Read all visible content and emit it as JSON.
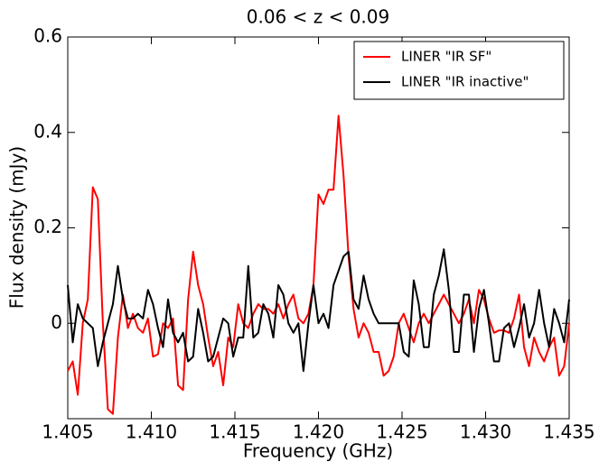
{
  "chart_data": {
    "type": "line",
    "title": "0.06 < z < 0.09",
    "x_label": "Frequency (GHz)",
    "y_label": "Flux density (mJy)",
    "x": [
      1.405,
      1.4053,
      1.4056,
      1.4059,
      1.4062,
      1.4065,
      1.4068,
      1.4071,
      1.4074,
      1.4077,
      1.408,
      1.4083,
      1.4086,
      1.4089,
      1.4092,
      1.4095,
      1.4098,
      1.4101,
      1.4104,
      1.4107,
      1.411,
      1.4113,
      1.4116,
      1.4119,
      1.4122,
      1.4125,
      1.4128,
      1.4131,
      1.4134,
      1.4137,
      1.414,
      1.4143,
      1.4146,
      1.4149,
      1.4152,
      1.4155,
      1.4158,
      1.4161,
      1.4164,
      1.4167,
      1.417,
      1.4173,
      1.4176,
      1.4179,
      1.4182,
      1.4185,
      1.4188,
      1.4191,
      1.4194,
      1.4197,
      1.42,
      1.4203,
      1.4206,
      1.4209,
      1.4212,
      1.4215,
      1.4218,
      1.4221,
      1.4224,
      1.4227,
      1.423,
      1.4233,
      1.4236,
      1.4239,
      1.4242,
      1.4245,
      1.4248,
      1.4251,
      1.4254,
      1.4257,
      1.426,
      1.4263,
      1.4266,
      1.4269,
      1.4272,
      1.4275,
      1.4278,
      1.4281,
      1.4284,
      1.4287,
      1.429,
      1.4293,
      1.4296,
      1.4299,
      1.4302,
      1.4305,
      1.4308,
      1.4311,
      1.4314,
      1.4317,
      1.432,
      1.4323,
      1.4326,
      1.4329,
      1.4332,
      1.4335,
      1.4338,
      1.4341,
      1.4344,
      1.4347,
      1.435
    ],
    "series": [
      {
        "name": "LINER \"IR SF\"",
        "color": "#ff0000",
        "values": [
          -0.1,
          -0.08,
          -0.15,
          0.0,
          0.05,
          0.285,
          0.26,
          0.0,
          -0.18,
          -0.19,
          -0.03,
          0.06,
          -0.01,
          0.02,
          -0.01,
          -0.02,
          0.01,
          -0.07,
          -0.065,
          0.0,
          -0.01,
          0.01,
          -0.13,
          -0.14,
          0.05,
          0.15,
          0.08,
          0.04,
          -0.03,
          -0.09,
          -0.06,
          -0.13,
          -0.03,
          -0.05,
          0.04,
          0.0,
          -0.01,
          0.02,
          0.04,
          0.03,
          0.03,
          0.02,
          0.04,
          0.01,
          0.04,
          0.06,
          0.01,
          0.0,
          0.02,
          0.08,
          0.27,
          0.25,
          0.28,
          0.28,
          0.435,
          0.31,
          0.14,
          0.03,
          -0.03,
          0.0,
          -0.02,
          -0.06,
          -0.06,
          -0.11,
          -0.1,
          -0.07,
          0.0,
          0.02,
          -0.01,
          -0.04,
          0.0,
          0.02,
          0.0,
          0.02,
          0.04,
          0.06,
          0.04,
          0.02,
          0.0,
          0.02,
          0.05,
          0.0,
          0.07,
          0.05,
          0.01,
          -0.02,
          -0.015,
          -0.015,
          -0.02,
          0.01,
          0.06,
          -0.05,
          -0.09,
          -0.03,
          -0.06,
          -0.08,
          -0.05,
          -0.03,
          -0.11,
          -0.09,
          0.0
        ]
      },
      {
        "name": "LINER \"IR inactive\"",
        "color": "#000000",
        "values": [
          0.08,
          -0.04,
          0.04,
          0.01,
          0.0,
          -0.01,
          -0.09,
          -0.04,
          0.0,
          0.04,
          0.12,
          0.05,
          0.01,
          0.01,
          0.02,
          0.01,
          0.07,
          0.04,
          -0.01,
          -0.05,
          0.05,
          -0.02,
          -0.04,
          -0.02,
          -0.08,
          -0.07,
          0.03,
          -0.02,
          -0.08,
          -0.07,
          -0.03,
          0.01,
          0.0,
          -0.07,
          -0.03,
          -0.03,
          0.12,
          -0.03,
          -0.02,
          0.04,
          0.02,
          -0.03,
          0.08,
          0.06,
          0.0,
          -0.02,
          0.0,
          -0.1,
          0.0,
          0.08,
          0.0,
          0.02,
          -0.01,
          0.08,
          0.11,
          0.14,
          0.15,
          0.05,
          0.03,
          0.1,
          0.05,
          0.02,
          0.0,
          0.0,
          0.0,
          0.0,
          0.0,
          -0.06,
          -0.07,
          0.09,
          0.04,
          -0.05,
          -0.05,
          0.06,
          0.1,
          0.155,
          0.07,
          -0.06,
          -0.06,
          0.06,
          0.06,
          -0.06,
          0.03,
          0.07,
          0.0,
          -0.08,
          -0.08,
          -0.01,
          0.0,
          -0.05,
          -0.01,
          0.04,
          -0.03,
          0.0,
          0.07,
          0.0,
          -0.05,
          0.03,
          0.0,
          -0.04,
          0.05
        ]
      }
    ],
    "xlim": [
      1.405,
      1.435
    ],
    "xticks": [
      1.405,
      {
        "value": 1.41,
        "label": "1.410"
      },
      1.415,
      {
        "value": 1.42,
        "label": "1.420"
      },
      1.425,
      {
        "value": 1.43,
        "label": "1.430"
      },
      1.435
    ],
    "ylim": [
      -0.2,
      0.6
    ],
    "yticks": [
      0,
      0.2,
      0.4,
      0.6
    ],
    "grid": false,
    "legend": "upper right"
  }
}
